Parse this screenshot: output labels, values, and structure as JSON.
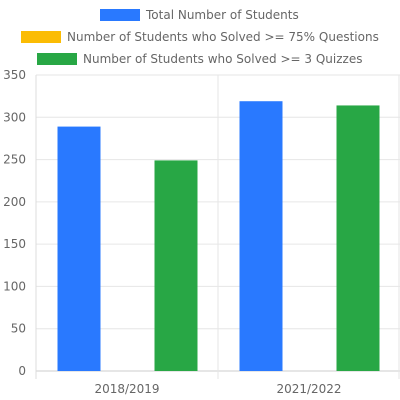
{
  "chart_data": {
    "type": "bar",
    "categories": [
      "2018/2019",
      "2021/2022"
    ],
    "series": [
      {
        "name": "Total Number of Students",
        "color": "#2979ff",
        "values": [
          289,
          319
        ]
      },
      {
        "name": "Number of Students who Solved >= 75% Questions",
        "color": "#fbbc04",
        "values": [
          0,
          0
        ]
      },
      {
        "name": "Number of Students who Solved >= 3 Quizzes",
        "color": "#28a745",
        "values": [
          249,
          314
        ]
      }
    ],
    "title": "",
    "xlabel": "",
    "ylabel": "",
    "ylim": [
      0,
      350
    ],
    "yticks": [
      0,
      50,
      100,
      150,
      200,
      250,
      300,
      350
    ],
    "grid": true,
    "legend_position": "top"
  }
}
